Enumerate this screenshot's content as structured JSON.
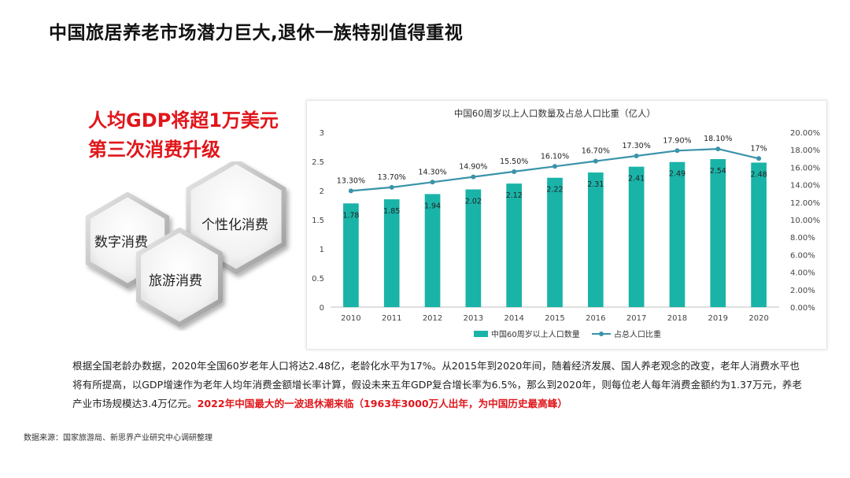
{
  "page": {
    "title": "中国旅居养老市场潜力巨大,退休一族特别值得重视",
    "headline_line1": "人均GDP将超1万美元",
    "headline_line2": "第三次消费升级",
    "hexagons": [
      "数字消费",
      "旅游消费",
      "个性化消费"
    ],
    "paragraph_text": "根据全国老龄办数据，2020年全国60岁老年人口将达2.48亿，老龄化水平为17%。从2015年到2020年间，随着经济发展、国人养老观念的改变，老年人消费水平也将有所提高，以GDP增速作为老年人均年消费金额增长率计算，假设未来五年GDP复合增长率为6.5%，那么到2020年，则每位老人每年消费金额约为1.37万元，养老产业市场规模达3.4万亿元。",
    "paragraph_highlight": "2022年中国最大的一波退休潮来临（1963年3000万人出年，为中国历史最高峰）",
    "source": "数据来源：国家旅游局、新思界产业研究中心调研整理"
  },
  "colors": {
    "bar": "#1ab3a8",
    "line": "#3a93a9",
    "highlight": "#e0161b"
  },
  "chart_data": {
    "type": "bar",
    "title": "中国60周岁以上人口数量及占总人口比重（亿人）",
    "categories": [
      "2010",
      "2011",
      "2012",
      "2013",
      "2014",
      "2015",
      "2016",
      "2017",
      "2018",
      "2019",
      "2020"
    ],
    "series": [
      {
        "name": "中国60周岁以上人口数量",
        "type": "bar",
        "axis": "left",
        "values": [
          1.78,
          1.85,
          1.94,
          2.02,
          2.12,
          2.22,
          2.31,
          2.41,
          2.49,
          2.54,
          2.48
        ],
        "labels": [
          "1.78",
          "1.85",
          "1.94",
          "2.02",
          "2.12",
          "2.22",
          "2.31",
          "2.41",
          "2.49",
          "2.54",
          "2.48"
        ]
      },
      {
        "name": "占总人口比重",
        "type": "line",
        "axis": "right",
        "values": [
          13.3,
          13.7,
          14.3,
          14.9,
          15.5,
          16.1,
          16.7,
          17.3,
          17.9,
          18.1,
          17
        ],
        "labels": [
          "13.30%",
          "13.70%",
          "14.30%",
          "14.90%",
          "15.50%",
          "16.10%",
          "16.70%",
          "17.30%",
          "17.90%",
          "18.10%",
          "17%"
        ]
      }
    ],
    "y_left": {
      "min": 0,
      "max": 3,
      "ticks": [
        "0",
        "0.5",
        "1",
        "1.5",
        "2",
        "2.5",
        "3"
      ]
    },
    "y_right": {
      "min": 0,
      "max": 20,
      "ticks": [
        "0.00%",
        "2.00%",
        "4.00%",
        "6.00%",
        "8.00%",
        "10.00%",
        "12.00%",
        "14.00%",
        "16.00%",
        "18.00%",
        "20.00%"
      ]
    },
    "legend": "bottom",
    "grid": false
  }
}
